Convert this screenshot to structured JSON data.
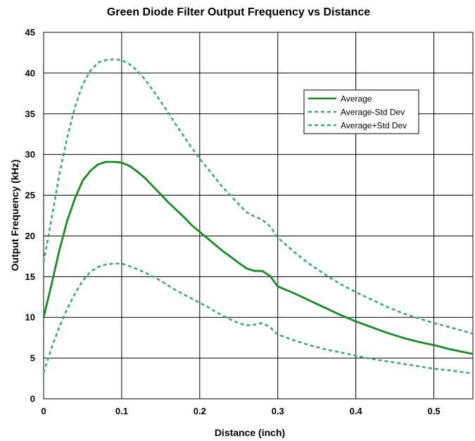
{
  "chart_data": {
    "type": "line",
    "title": "Green Diode Filter Output Frequency vs Distance",
    "xlabel": "Distance (inch)",
    "ylabel": "Output Frequency (kHz)",
    "xlim": [
      0,
      0.55
    ],
    "ylim": [
      0,
      45
    ],
    "x_ticks": [
      "0",
      "0.1",
      "0.2",
      "0.3",
      "0.4",
      "0.5"
    ],
    "y_ticks": [
      "0",
      "5",
      "10",
      "15",
      "20",
      "25",
      "30",
      "35",
      "40",
      "45"
    ],
    "grid": true,
    "legend_position": "top-right",
    "x": [
      0,
      0.01,
      0.02,
      0.03,
      0.04,
      0.05,
      0.06,
      0.07,
      0.08,
      0.09,
      0.1,
      0.11,
      0.12,
      0.13,
      0.14,
      0.15,
      0.16,
      0.17,
      0.18,
      0.19,
      0.2,
      0.21,
      0.22,
      0.23,
      0.24,
      0.25,
      0.26,
      0.27,
      0.28,
      0.29,
      0.3,
      0.32,
      0.34,
      0.36,
      0.38,
      0.4,
      0.42,
      0.44,
      0.46,
      0.48,
      0.5,
      0.52,
      0.55
    ],
    "series": [
      {
        "name": "Average",
        "color": "#1a8a28",
        "style": "solid",
        "values": [
          10.0,
          14.0,
          18.2,
          21.8,
          24.6,
          26.8,
          28.0,
          28.8,
          29.1,
          29.1,
          29.0,
          28.6,
          27.9,
          27.1,
          26.1,
          25.1,
          24.1,
          23.2,
          22.3,
          21.3,
          20.5,
          19.7,
          18.9,
          18.1,
          17.4,
          16.7,
          16.0,
          15.7,
          15.7,
          15.1,
          13.8,
          13.0,
          12.1,
          11.2,
          10.3,
          9.5,
          8.8,
          8.1,
          7.5,
          7.0,
          6.6,
          6.1,
          5.5
        ]
      },
      {
        "name": "Average-Std Dev",
        "color": "#3aa57a",
        "style": "dashed",
        "values": [
          3.2,
          6.2,
          8.8,
          11.0,
          12.9,
          14.5,
          15.6,
          16.2,
          16.5,
          16.6,
          16.6,
          16.3,
          15.9,
          15.5,
          15.0,
          14.5,
          13.9,
          13.3,
          12.8,
          12.3,
          11.8,
          11.3,
          10.7,
          10.2,
          9.7,
          9.3,
          9.0,
          9.1,
          9.3,
          8.8,
          7.9,
          7.2,
          6.6,
          6.1,
          5.7,
          5.3,
          4.9,
          4.6,
          4.3,
          4.0,
          3.7,
          3.5,
          3.1
        ]
      },
      {
        "name": "Average+Std Dev",
        "color": "#3aa57a",
        "style": "dashed",
        "values": [
          16.8,
          22.0,
          27.5,
          32.0,
          35.8,
          38.6,
          40.3,
          41.3,
          41.6,
          41.7,
          41.6,
          41.1,
          40.3,
          39.2,
          37.9,
          36.5,
          35.1,
          33.6,
          32.2,
          30.8,
          29.5,
          28.3,
          27.1,
          25.9,
          24.9,
          23.9,
          22.9,
          22.4,
          22.0,
          21.2,
          19.8,
          18.1,
          16.6,
          15.3,
          14.1,
          13.1,
          12.2,
          11.3,
          10.5,
          9.9,
          9.3,
          8.8,
          8.0
        ]
      }
    ]
  }
}
